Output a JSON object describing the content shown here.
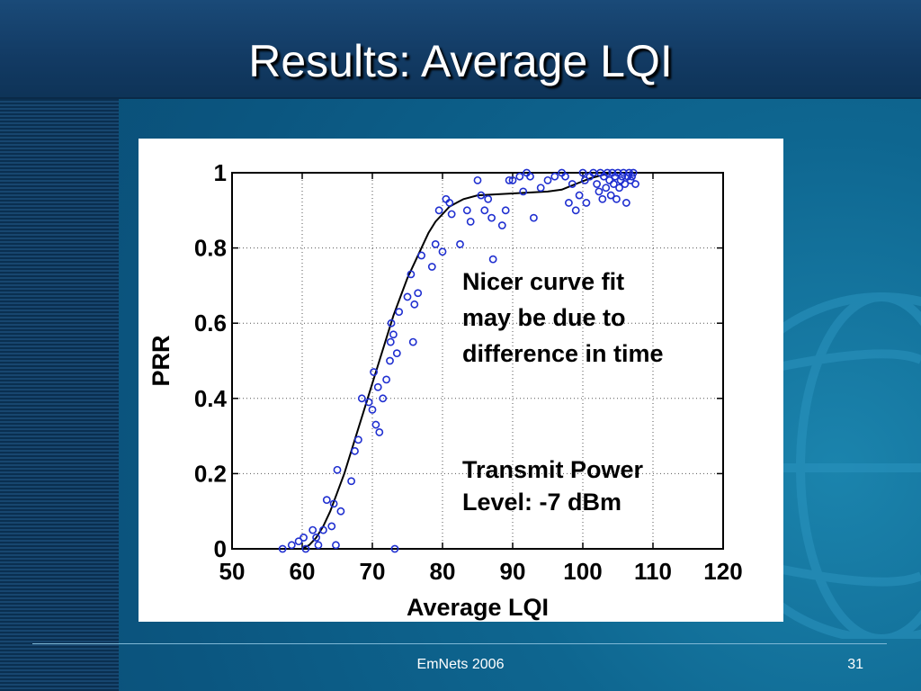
{
  "slide": {
    "title": "Results: Average LQI",
    "footer": "EmNets 2006",
    "page_number": "31"
  },
  "colors": {
    "title_bar": "#123a63",
    "background": "#0b5680",
    "points": "#1f2fd0",
    "curve": "#000000"
  },
  "chart_data": {
    "type": "scatter",
    "xlabel": "Average LQI",
    "ylabel": "PRR",
    "xlim": [
      50,
      120
    ],
    "ylim": [
      0,
      1
    ],
    "x_ticks": [
      "50",
      "60",
      "70",
      "80",
      "90",
      "100",
      "110",
      "120"
    ],
    "y_ticks": [
      "0",
      "0.2",
      "0.4",
      "0.6",
      "0.8",
      "1"
    ],
    "grid": true,
    "annotations": [
      {
        "lines": [
          "Nicer curve fit",
          "may be due to",
          "difference in time"
        ]
      },
      {
        "lines": [
          "Transmit Power",
          "Level: -7 dBm"
        ]
      }
    ],
    "series": [
      {
        "kind": "points",
        "points": [
          [
            57.2,
            0.0
          ],
          [
            58.5,
            0.01
          ],
          [
            59.5,
            0.02
          ],
          [
            60.2,
            0.03
          ],
          [
            60.5,
            0.0
          ],
          [
            61.5,
            0.05
          ],
          [
            62,
            0.03
          ],
          [
            62.3,
            0.01
          ],
          [
            63,
            0.05
          ],
          [
            63.5,
            0.13
          ],
          [
            64.5,
            0.12
          ],
          [
            64.2,
            0.06
          ],
          [
            65,
            0.21
          ],
          [
            65.5,
            0.1
          ],
          [
            64.8,
            0.01
          ],
          [
            67,
            0.18
          ],
          [
            67.5,
            0.26
          ],
          [
            68,
            0.29
          ],
          [
            68.5,
            0.4
          ],
          [
            69.5,
            0.39
          ],
          [
            70,
            0.37
          ],
          [
            70.2,
            0.47
          ],
          [
            70.5,
            0.33
          ],
          [
            70.8,
            0.43
          ],
          [
            71,
            0.31
          ],
          [
            71.5,
            0.4
          ],
          [
            72,
            0.45
          ],
          [
            72.5,
            0.5
          ],
          [
            72.6,
            0.55
          ],
          [
            72.7,
            0.6
          ],
          [
            73,
            0.57
          ],
          [
            73.5,
            0.52
          ],
          [
            73.8,
            0.63
          ],
          [
            73.2,
            0.0
          ],
          [
            75,
            0.67
          ],
          [
            75.5,
            0.73
          ],
          [
            75.8,
            0.55
          ],
          [
            76,
            0.65
          ],
          [
            76.5,
            0.68
          ],
          [
            77,
            0.78
          ],
          [
            78.5,
            0.75
          ],
          [
            79,
            0.81
          ],
          [
            79.5,
            0.9
          ],
          [
            80,
            0.79
          ],
          [
            80.5,
            0.93
          ],
          [
            81,
            0.92
          ],
          [
            81.3,
            0.89
          ],
          [
            82.5,
            0.81
          ],
          [
            83.5,
            0.9
          ],
          [
            84,
            0.87
          ],
          [
            85,
            0.98
          ],
          [
            85.5,
            0.94
          ],
          [
            86,
            0.9
          ],
          [
            86.5,
            0.93
          ],
          [
            87,
            0.88
          ],
          [
            87.2,
            0.77
          ],
          [
            88.5,
            0.86
          ],
          [
            89,
            0.9
          ],
          [
            89.5,
            0.98
          ],
          [
            90,
            0.98
          ],
          [
            91,
            0.99
          ],
          [
            91.5,
            0.95
          ],
          [
            92,
            1.0
          ],
          [
            92.5,
            0.99
          ],
          [
            93,
            0.88
          ],
          [
            94,
            0.96
          ],
          [
            95,
            0.98
          ],
          [
            96,
            0.99
          ],
          [
            97,
            1.0
          ],
          [
            97.5,
            0.99
          ],
          [
            98,
            0.92
          ],
          [
            98.5,
            0.97
          ],
          [
            99,
            0.9
          ],
          [
            99.5,
            0.94
          ],
          [
            100,
            1.0
          ],
          [
            100.3,
            0.98
          ],
          [
            100.5,
            0.92
          ],
          [
            101,
            0.99
          ],
          [
            101.5,
            1.0
          ],
          [
            102,
            0.97
          ],
          [
            102.3,
            0.95
          ],
          [
            102.5,
            1.0
          ],
          [
            102.8,
            0.93
          ],
          [
            103,
            0.99
          ],
          [
            103.3,
            0.96
          ],
          [
            103.5,
            1.0
          ],
          [
            103.8,
            0.98
          ],
          [
            104,
            0.94
          ],
          [
            104.2,
            1.0
          ],
          [
            104.4,
            0.97
          ],
          [
            104.6,
            0.99
          ],
          [
            104.8,
            0.93
          ],
          [
            105,
            1.0
          ],
          [
            105.2,
            0.96
          ],
          [
            105.4,
            0.98
          ],
          [
            105.6,
            0.99
          ],
          [
            105.8,
            1.0
          ],
          [
            106,
            0.97
          ],
          [
            106.2,
            0.92
          ],
          [
            106.4,
            0.99
          ],
          [
            106.6,
            1.0
          ],
          [
            106.8,
            0.98
          ],
          [
            107,
            0.99
          ],
          [
            107.2,
            1.0
          ],
          [
            107.5,
            0.97
          ]
        ]
      },
      {
        "kind": "fit",
        "points": [
          [
            50,
            0.0
          ],
          [
            60,
            0.0
          ],
          [
            61,
            0.01
          ],
          [
            62,
            0.03
          ],
          [
            63,
            0.06
          ],
          [
            64,
            0.1
          ],
          [
            65,
            0.15
          ],
          [
            66,
            0.2
          ],
          [
            67,
            0.26
          ],
          [
            68,
            0.32
          ],
          [
            69,
            0.38
          ],
          [
            70,
            0.44
          ],
          [
            71,
            0.5
          ],
          [
            72,
            0.56
          ],
          [
            73,
            0.62
          ],
          [
            74,
            0.67
          ],
          [
            75,
            0.72
          ],
          [
            76,
            0.76
          ],
          [
            77,
            0.8
          ],
          [
            78,
            0.84
          ],
          [
            79,
            0.87
          ],
          [
            80,
            0.89
          ],
          [
            81,
            0.91
          ],
          [
            82,
            0.92
          ],
          [
            83,
            0.93
          ],
          [
            85,
            0.94
          ],
          [
            90,
            0.945
          ],
          [
            95,
            0.95
          ],
          [
            97,
            0.955
          ],
          [
            99,
            0.97
          ],
          [
            101,
            0.985
          ],
          [
            103,
            0.995
          ],
          [
            104,
            1.0
          ],
          [
            108,
            1.0
          ]
        ]
      }
    ]
  }
}
